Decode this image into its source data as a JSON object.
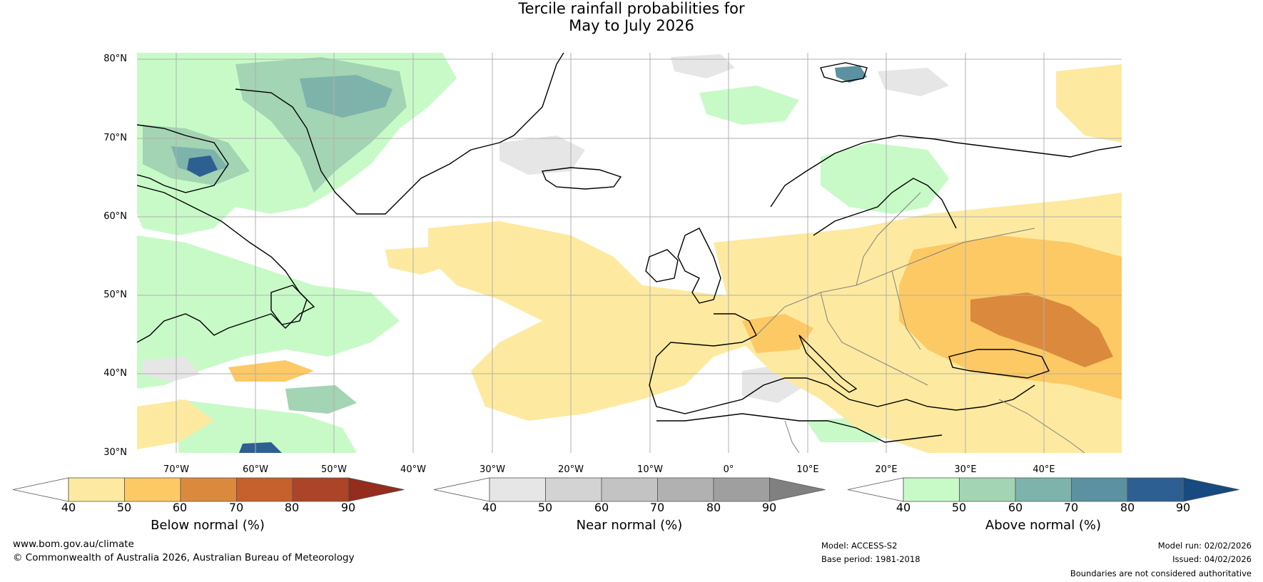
{
  "title": {
    "line1": "Tercile rainfall probabilities for",
    "line2": "May to July 2026"
  },
  "map": {
    "latitude_labels": [
      "80°N",
      "70°N",
      "60°N",
      "50°N",
      "40°N",
      "30°N"
    ],
    "longitude_labels": [
      "70°W",
      "60°W",
      "50°W",
      "40°W",
      "30°W",
      "20°W",
      "10°W",
      "0°",
      "10°E",
      "20°E",
      "30°E",
      "40°E"
    ],
    "colors": {
      "coast": "#000000",
      "borders": "#808080",
      "grid": "#b0b0b0"
    }
  },
  "legends": [
    {
      "label": "Below normal (%)",
      "ticks": [
        "40",
        "50",
        "60",
        "70",
        "80",
        "90"
      ],
      "colors": [
        "#ffffff",
        "#fdeaa0",
        "#fdc965",
        "#db8a3d",
        "#c6602c",
        "#ac4427",
        "#942d1e"
      ]
    },
    {
      "label": "Near normal (%)",
      "ticks": [
        "40",
        "50",
        "60",
        "70",
        "80",
        "90"
      ],
      "colors": [
        "#ffffff",
        "#e6e6e6",
        "#d3d3d3",
        "#c3c3c3",
        "#b1b1b1",
        "#9f9f9f",
        "#808080"
      ]
    },
    {
      "label": "Above normal (%)",
      "ticks": [
        "40",
        "50",
        "60",
        "70",
        "80",
        "90"
      ],
      "colors": [
        "#ffffff",
        "#c8fac8",
        "#a3d4b3",
        "#7eb3ab",
        "#5b91a0",
        "#2e5f92",
        "#164a80"
      ]
    }
  ],
  "footer": {
    "website": "www.bom.gov.au/climate",
    "copyright": "© Commonwealth of Australia 2026, Australian Bureau of Meteorology",
    "model": "Model: ACCESS-S2",
    "base_period": "Base period: 1981-2018",
    "model_run": "Model run: 02/02/2026",
    "issued": "Issued: 04/02/2026",
    "disclaimer": "Boundaries are not considered authoritative"
  }
}
